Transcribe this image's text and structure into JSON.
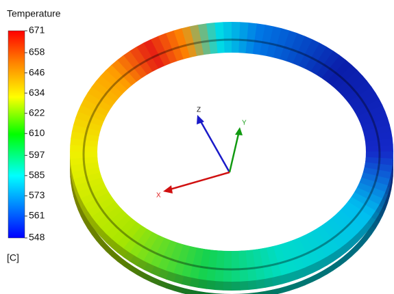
{
  "legend": {
    "title": "Temperature",
    "ticks": [
      671,
      658,
      646,
      634,
      622,
      610,
      597,
      585,
      573,
      561,
      548
    ],
    "unit": "[C]"
  },
  "axes": {
    "x": "X",
    "y": "Y",
    "z": "Z"
  }
}
